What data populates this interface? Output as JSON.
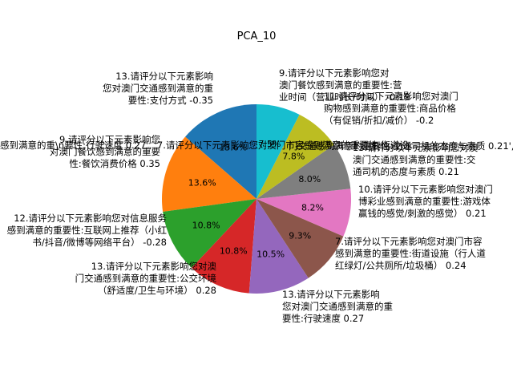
{
  "chart_data": {
    "type": "pie",
    "title": "PCA_10",
    "start_angle_deg": 90,
    "direction": "counterclockwise",
    "slices": [
      {
        "name": "13.请评分以下元素影响您对澳门交通感到满意的重要性:支付方式 -0.35",
        "value": 13.6,
        "pct_label": "13.6%",
        "color": "#1f77b4"
      },
      {
        "name": "9.请评分以下元素影响您对澳门餐饮感到满意的重要性:餐饮消费价格 0.35",
        "value": 13.6,
        "pct_label": "13.6%",
        "color": "#ff7f0e"
      },
      {
        "name": "12.请评分以下元素影响您对信息服务感到满意的重要性:互联网上推荐（小红书/抖音/微博等网络平台） -0.28",
        "value": 10.8,
        "pct_label": "10.8%",
        "color": "#2ca02c"
      },
      {
        "name": "13.请评分以下元素影响您对澳门交通感到满意的重要性:公交环境（舒适度/卫生与环境） 0.28",
        "value": 10.8,
        "pct_label": "10.8%",
        "color": "#d62728"
      },
      {
        "name": "13.请评分以下元素影响您对澳门交通感到满意的重要性:行驶速度 0.27",
        "value": 10.5,
        "pct_label": "10.5%",
        "color": "#9467bd"
      },
      {
        "name": "7.请评分以下元素影响您对澳门市容感到满意的重要性:街道设施（行人道/红绿灯/公共厕所/垃圾桶） 0.24",
        "value": 9.3,
        "pct_label": "9.3%",
        "color": "#8c564b"
      },
      {
        "name": "10.请评分以下元素影响您对澳门博彩业感到满意的重要性:游戏体验（输赢钱的感觉/刺激的感觉） 0.21",
        "value": 8.2,
        "pct_label": "8.2%",
        "color": "#e377c2"
      },
      {
        "name": "13.请评分以下元素影响您对澳门交通感到满意的重要性:交通司机的态度与素质 0.21",
        "value": 8.0,
        "pct_label": "8.0%",
        "color": "#7f7f7f"
      },
      {
        "name": "11.请评分以下元素影响您对澳门购物感到满意的重要性:商品价格（有促销/折扣/减价） -0.2",
        "value": 7.8,
        "pct_label": "7.8%",
        "color": "#bcbd22"
      },
      {
        "name": "9.请评分以下元素影响您对澳门餐饮感到满意的重要性:营业时间（营业时长/时间） -0.19",
        "value": 7.5,
        "pct_label": "7.5%",
        "color": "#17becf"
      }
    ],
    "overlapping_texts": [
      "感到满意的重\\n要性:行驶速度 0.27', '7.请评分以下元素影响您对澳门市容感到满意的重要性:街道设",
      "门交通感到满意的重要性:交通司机的态度与素质 0.21', '10.请评分以下元素影响您对澳门博彩业感到满意的重要性:游戏体验"
    ]
  },
  "labels": [
    [
      "13.请评分以下元素影响",
      "您对澳门交通感到满意的重",
      "要性:支付方式 -0.35"
    ],
    [
      "9.请评分以下元素影响您",
      "对澳门餐饮感到满意的重要",
      "性:餐饮消费价格 0.35"
    ],
    [
      "12.请评分以下元素影响您对信息服务",
      "感到满意的重要性:互联网上推荐（小红",
      "书/抖音/微博等网络平台） -0.28"
    ],
    [
      "13.请评分以下元素影响您对澳",
      "门交通感到满意的重要性:公交环境",
      "（舒适度/卫生与环境） 0.28"
    ],
    [
      "13.请评分以下元素影响",
      "您对澳门交通感到满意的重",
      "要性:行驶速度 0.27"
    ],
    [
      "7.请评分以下元素影响您对澳门市容",
      "感到满意的重要性:街道设施（行人道",
      "红绿灯/公共厕所/垃圾桶） 0.24"
    ],
    [
      "10.请评分以下元素影响您对澳门",
      "博彩业感到满意的重要性:游戏体",
      "赢钱的感觉/刺激的感觉） 0.21"
    ],
    [
      "13.请评分以下元素影响您对澳",
      "澳门交通感到满意的重要性:交",
      "通司机的态度与素质 0.21"
    ],
    [
      "11.请评分以下元素影响您对澳门",
      "购物感到满意的重要性:商品价格",
      "（有促销/折扣/减价） -0.2"
    ],
    [
      "9.请评分以下元素影响您对",
      "澳门餐饮感到满意的重要性:营",
      "业时间（营业时长/时间） -0.19"
    ]
  ]
}
